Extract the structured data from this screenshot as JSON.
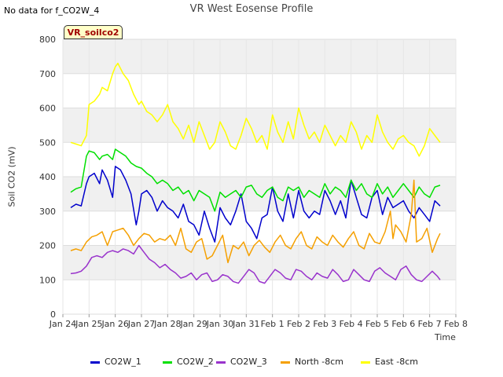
{
  "no_data_text": "No data for f_CO2W_4",
  "badge_label": "VR_soilco2",
  "chart_data": {
    "type": "line",
    "title": "VR West Eosense Profile",
    "xlabel": "Time",
    "ylabel": "Soil CO2 (mV)",
    "ylim": [
      0,
      800
    ],
    "yticks": [
      0,
      100,
      200,
      300,
      400,
      500,
      600,
      700,
      800
    ],
    "xlim": [
      0,
      15
    ],
    "xticks": [
      {
        "v": 0,
        "label": "Jan 24"
      },
      {
        "v": 1,
        "label": "Jan 25"
      },
      {
        "v": 2,
        "label": "Jan 26"
      },
      {
        "v": 3,
        "label": "Jan 27"
      },
      {
        "v": 4,
        "label": "Jan 28"
      },
      {
        "v": 5,
        "label": "Jan 29"
      },
      {
        "v": 6,
        "label": "Jan 30"
      },
      {
        "v": 7,
        "label": "Jan 31"
      },
      {
        "v": 8,
        "label": "Feb 1"
      },
      {
        "v": 9,
        "label": "Feb 2"
      },
      {
        "v": 10,
        "label": "Feb 3"
      },
      {
        "v": 11,
        "label": "Feb 4"
      },
      {
        "v": 12,
        "label": "Feb 5"
      },
      {
        "v": 13,
        "label": "Feb 6"
      },
      {
        "v": 14,
        "label": "Feb 7"
      },
      {
        "v": 15,
        "label": "Feb 8"
      }
    ],
    "grid": true,
    "legend_position": "bottom",
    "series": [
      {
        "name": "CO2W_1",
        "color": "#0000cc",
        "x": [
          0.3,
          0.5,
          0.7,
          0.9,
          1.0,
          1.2,
          1.4,
          1.5,
          1.7,
          1.9,
          2.0,
          2.2,
          2.4,
          2.6,
          2.8,
          2.9,
          3.0,
          3.2,
          3.4,
          3.6,
          3.8,
          4.0,
          4.2,
          4.4,
          4.6,
          4.8,
          5.0,
          5.2,
          5.4,
          5.6,
          5.8,
          6.0,
          6.2,
          6.4,
          6.6,
          6.8,
          7.0,
          7.2,
          7.4,
          7.6,
          7.8,
          8.0,
          8.2,
          8.4,
          8.6,
          8.8,
          9.0,
          9.2,
          9.4,
          9.6,
          9.8,
          10.0,
          10.2,
          10.4,
          10.6,
          10.8,
          11.0,
          11.2,
          11.4,
          11.6,
          11.8,
          12.0,
          12.2,
          12.4,
          12.6,
          12.8,
          13.0,
          13.2,
          13.4,
          13.6,
          13.8,
          14.0,
          14.2,
          14.4
        ],
        "y": [
          310,
          320,
          315,
          380,
          400,
          410,
          380,
          420,
          390,
          340,
          430,
          420,
          390,
          350,
          260,
          300,
          350,
          360,
          340,
          300,
          330,
          310,
          300,
          280,
          320,
          270,
          260,
          230,
          300,
          250,
          210,
          310,
          280,
          260,
          300,
          350,
          270,
          250,
          220,
          280,
          290,
          370,
          300,
          270,
          350,
          280,
          360,
          300,
          280,
          300,
          290,
          360,
          330,
          290,
          330,
          280,
          390,
          340,
          290,
          280,
          340,
          360,
          290,
          340,
          310,
          320,
          330,
          300,
          280,
          310,
          290,
          270,
          330,
          315
        ]
      },
      {
        "name": "CO2W_2",
        "color": "#00e000",
        "x": [
          0.3,
          0.5,
          0.7,
          0.9,
          1.0,
          1.2,
          1.4,
          1.5,
          1.7,
          1.9,
          2.0,
          2.2,
          2.4,
          2.6,
          2.8,
          3.0,
          3.2,
          3.4,
          3.6,
          3.8,
          4.0,
          4.2,
          4.4,
          4.6,
          4.8,
          5.0,
          5.2,
          5.4,
          5.6,
          5.8,
          6.0,
          6.2,
          6.4,
          6.6,
          6.8,
          7.0,
          7.2,
          7.4,
          7.6,
          7.8,
          8.0,
          8.2,
          8.4,
          8.6,
          8.8,
          9.0,
          9.2,
          9.4,
          9.6,
          9.8,
          10.0,
          10.2,
          10.4,
          10.6,
          10.8,
          11.0,
          11.2,
          11.4,
          11.6,
          11.8,
          12.0,
          12.2,
          12.4,
          12.6,
          12.8,
          13.0,
          13.2,
          13.4,
          13.6,
          13.8,
          14.0,
          14.2,
          14.4
        ],
        "y": [
          355,
          365,
          370,
          460,
          475,
          470,
          450,
          460,
          465,
          450,
          480,
          470,
          460,
          440,
          430,
          425,
          410,
          400,
          380,
          390,
          380,
          360,
          370,
          350,
          360,
          330,
          360,
          350,
          340,
          300,
          355,
          340,
          350,
          360,
          340,
          370,
          375,
          350,
          340,
          360,
          370,
          340,
          330,
          370,
          360,
          370,
          340,
          360,
          350,
          340,
          380,
          350,
          370,
          360,
          340,
          390,
          360,
          380,
          350,
          340,
          380,
          350,
          370,
          340,
          360,
          380,
          360,
          340,
          370,
          350,
          340,
          370,
          375
        ]
      },
      {
        "name": "CO2W_3",
        "color": "#9933cc",
        "x": [
          0.3,
          0.5,
          0.7,
          0.9,
          1.1,
          1.3,
          1.5,
          1.7,
          1.9,
          2.1,
          2.3,
          2.5,
          2.7,
          2.9,
          3.1,
          3.3,
          3.5,
          3.7,
          3.9,
          4.1,
          4.3,
          4.5,
          4.7,
          4.9,
          5.1,
          5.3,
          5.5,
          5.7,
          5.9,
          6.1,
          6.3,
          6.5,
          6.7,
          6.9,
          7.1,
          7.3,
          7.5,
          7.7,
          7.9,
          8.1,
          8.3,
          8.5,
          8.7,
          8.9,
          9.1,
          9.3,
          9.5,
          9.7,
          9.9,
          10.1,
          10.3,
          10.5,
          10.7,
          10.9,
          11.1,
          11.3,
          11.5,
          11.7,
          11.9,
          12.1,
          12.3,
          12.5,
          12.7,
          12.9,
          13.1,
          13.3,
          13.5,
          13.7,
          13.9,
          14.1,
          14.3,
          14.4
        ],
        "y": [
          118,
          120,
          125,
          140,
          165,
          170,
          165,
          180,
          185,
          180,
          190,
          185,
          175,
          200,
          180,
          160,
          150,
          135,
          145,
          130,
          120,
          105,
          110,
          120,
          100,
          115,
          120,
          95,
          100,
          115,
          110,
          95,
          90,
          110,
          130,
          120,
          95,
          90,
          110,
          130,
          120,
          105,
          100,
          130,
          125,
          110,
          100,
          120,
          110,
          105,
          130,
          115,
          95,
          100,
          130,
          115,
          100,
          95,
          125,
          135,
          120,
          110,
          100,
          130,
          140,
          115,
          100,
          95,
          110,
          125,
          110,
          100
        ]
      },
      {
        "name": "North -8cm",
        "color": "#f5a000",
        "x": [
          0.3,
          0.5,
          0.7,
          0.9,
          1.1,
          1.3,
          1.5,
          1.7,
          1.9,
          2.1,
          2.3,
          2.5,
          2.7,
          2.9,
          3.1,
          3.3,
          3.5,
          3.7,
          3.9,
          4.1,
          4.3,
          4.5,
          4.7,
          4.9,
          5.1,
          5.3,
          5.5,
          5.7,
          5.9,
          6.1,
          6.3,
          6.5,
          6.7,
          6.9,
          7.1,
          7.3,
          7.5,
          7.7,
          7.9,
          8.1,
          8.3,
          8.5,
          8.7,
          8.9,
          9.1,
          9.3,
          9.5,
          9.7,
          9.9,
          10.1,
          10.3,
          10.5,
          10.7,
          10.9,
          11.1,
          11.3,
          11.5,
          11.7,
          11.9,
          12.1,
          12.3,
          12.5,
          12.6,
          12.7,
          12.9,
          13.1,
          13.3,
          13.4,
          13.5,
          13.7,
          13.9,
          14.1,
          14.3,
          14.4
        ],
        "y": [
          185,
          190,
          185,
          210,
          225,
          230,
          240,
          200,
          240,
          245,
          250,
          230,
          200,
          220,
          235,
          230,
          210,
          220,
          215,
          230,
          200,
          250,
          190,
          180,
          210,
          220,
          160,
          170,
          200,
          230,
          150,
          200,
          190,
          210,
          170,
          200,
          215,
          195,
          180,
          210,
          230,
          200,
          190,
          220,
          240,
          200,
          190,
          225,
          210,
          200,
          230,
          210,
          195,
          220,
          240,
          200,
          190,
          235,
          210,
          205,
          240,
          300,
          220,
          260,
          240,
          210,
          290,
          390,
          210,
          220,
          250,
          180,
          220,
          235
        ]
      },
      {
        "name": "East -8cm",
        "color": "#ffff00",
        "x": [
          0.3,
          0.5,
          0.7,
          0.9,
          1.0,
          1.2,
          1.4,
          1.5,
          1.7,
          1.9,
          2.0,
          2.1,
          2.3,
          2.5,
          2.7,
          2.9,
          3.0,
          3.2,
          3.4,
          3.6,
          3.8,
          4.0,
          4.2,
          4.4,
          4.6,
          4.8,
          5.0,
          5.2,
          5.4,
          5.6,
          5.8,
          6.0,
          6.2,
          6.4,
          6.6,
          6.8,
          7.0,
          7.2,
          7.4,
          7.6,
          7.8,
          8.0,
          8.2,
          8.4,
          8.6,
          8.8,
          9.0,
          9.2,
          9.4,
          9.6,
          9.8,
          10.0,
          10.2,
          10.4,
          10.6,
          10.8,
          11.0,
          11.2,
          11.4,
          11.6,
          11.8,
          12.0,
          12.2,
          12.4,
          12.6,
          12.8,
          13.0,
          13.2,
          13.4,
          13.6,
          13.8,
          14.0,
          14.2,
          14.4
        ],
        "y": [
          500,
          495,
          490,
          520,
          610,
          620,
          640,
          660,
          650,
          700,
          720,
          730,
          700,
          680,
          640,
          610,
          620,
          590,
          580,
          560,
          580,
          610,
          560,
          540,
          510,
          550,
          500,
          560,
          520,
          480,
          500,
          560,
          530,
          490,
          480,
          520,
          570,
          540,
          500,
          520,
          480,
          580,
          530,
          500,
          560,
          510,
          600,
          550,
          510,
          530,
          500,
          550,
          520,
          490,
          520,
          500,
          560,
          530,
          480,
          520,
          500,
          580,
          530,
          500,
          480,
          510,
          520,
          500,
          490,
          460,
          490,
          540,
          520,
          500
        ]
      }
    ]
  }
}
